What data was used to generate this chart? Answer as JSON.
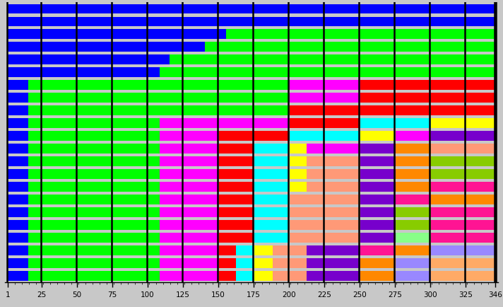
{
  "x_min": 1,
  "x_max": 346,
  "bg_color": "#c8c8c8",
  "major_lines": [
    1,
    25,
    50,
    75,
    100,
    125,
    150,
    175,
    200,
    225,
    250,
    275,
    300,
    325,
    346
  ],
  "tick_positions": [
    1,
    25,
    50,
    75,
    100,
    125,
    150,
    175,
    200,
    225,
    250,
    275,
    300,
    325,
    346
  ],
  "sequences": [
    [
      [
        1,
        346,
        "#0000ff"
      ]
    ],
    [
      [
        1,
        346,
        "#0000ff"
      ]
    ],
    [
      [
        1,
        155,
        "#0000ff"
      ],
      [
        156,
        346,
        "#00ff00"
      ]
    ],
    [
      [
        1,
        140,
        "#0000ff"
      ],
      [
        141,
        346,
        "#00ff00"
      ]
    ],
    [
      [
        1,
        115,
        "#0000ff"
      ],
      [
        116,
        346,
        "#00ff00"
      ]
    ],
    [
      [
        1,
        108,
        "#0000ff"
      ],
      [
        109,
        346,
        "#00ff00"
      ]
    ],
    [
      [
        1,
        15,
        "#0000ff"
      ],
      [
        16,
        200,
        "#00ff00"
      ],
      [
        201,
        250,
        "#ff00ff"
      ],
      [
        251,
        346,
        "#ff0000"
      ]
    ],
    [
      [
        1,
        15,
        "#0000ff"
      ],
      [
        16,
        200,
        "#00ff00"
      ],
      [
        201,
        250,
        "#ff00ff"
      ],
      [
        251,
        346,
        "#ff0000"
      ]
    ],
    [
      [
        1,
        15,
        "#0000ff"
      ],
      [
        16,
        200,
        "#00ff00"
      ],
      [
        201,
        250,
        "#ff0000"
      ],
      [
        251,
        346,
        "#ff0000"
      ]
    ],
    [
      [
        1,
        15,
        "#0000ff"
      ],
      [
        16,
        108,
        "#00ff00"
      ],
      [
        109,
        200,
        "#ff00ff"
      ],
      [
        201,
        250,
        "#ff0000"
      ],
      [
        251,
        300,
        "#00ffff"
      ],
      [
        301,
        346,
        "#ffff00"
      ]
    ],
    [
      [
        1,
        15,
        "#0000ff"
      ],
      [
        16,
        108,
        "#00ff00"
      ],
      [
        109,
        150,
        "#ff00ff"
      ],
      [
        151,
        200,
        "#ff0000"
      ],
      [
        201,
        250,
        "#00ffff"
      ],
      [
        251,
        275,
        "#ffff00"
      ],
      [
        276,
        300,
        "#ff00ff"
      ],
      [
        301,
        346,
        "#7700cc"
      ]
    ],
    [
      [
        1,
        15,
        "#0000ff"
      ],
      [
        16,
        108,
        "#00ff00"
      ],
      [
        109,
        150,
        "#ff00ff"
      ],
      [
        151,
        175,
        "#ff0000"
      ],
      [
        176,
        200,
        "#00ffff"
      ],
      [
        201,
        212,
        "#ffff00"
      ],
      [
        213,
        250,
        "#ff00ff"
      ],
      [
        251,
        275,
        "#7700cc"
      ],
      [
        276,
        300,
        "#ff8800"
      ],
      [
        301,
        346,
        "#ff9977"
      ]
    ],
    [
      [
        1,
        15,
        "#0000ff"
      ],
      [
        16,
        108,
        "#00ff00"
      ],
      [
        109,
        150,
        "#ff00ff"
      ],
      [
        151,
        175,
        "#ff0000"
      ],
      [
        176,
        200,
        "#00ffff"
      ],
      [
        201,
        212,
        "#ffff00"
      ],
      [
        213,
        250,
        "#ff9977"
      ],
      [
        251,
        275,
        "#7700cc"
      ],
      [
        276,
        300,
        "#ff8800"
      ],
      [
        301,
        346,
        "#88cc00"
      ]
    ],
    [
      [
        1,
        15,
        "#0000ff"
      ],
      [
        16,
        108,
        "#00ff00"
      ],
      [
        109,
        150,
        "#ff00ff"
      ],
      [
        151,
        175,
        "#ff0000"
      ],
      [
        176,
        200,
        "#00ffff"
      ],
      [
        201,
        212,
        "#ffff00"
      ],
      [
        213,
        250,
        "#ff9977"
      ],
      [
        251,
        275,
        "#7700cc"
      ],
      [
        276,
        300,
        "#ff8800"
      ],
      [
        301,
        346,
        "#88cc00"
      ]
    ],
    [
      [
        1,
        15,
        "#0000ff"
      ],
      [
        16,
        108,
        "#00ff00"
      ],
      [
        109,
        150,
        "#ff00ff"
      ],
      [
        151,
        175,
        "#ff0000"
      ],
      [
        176,
        200,
        "#00ffff"
      ],
      [
        201,
        212,
        "#ffff00"
      ],
      [
        213,
        250,
        "#ff9977"
      ],
      [
        251,
        275,
        "#7700cc"
      ],
      [
        276,
        300,
        "#ff8800"
      ],
      [
        301,
        346,
        "#ff1493"
      ]
    ],
    [
      [
        1,
        15,
        "#0000ff"
      ],
      [
        16,
        108,
        "#00ff00"
      ],
      [
        109,
        150,
        "#ff00ff"
      ],
      [
        151,
        175,
        "#ff0000"
      ],
      [
        176,
        200,
        "#00ffff"
      ],
      [
        201,
        250,
        "#ff9977"
      ],
      [
        251,
        275,
        "#7700cc"
      ],
      [
        276,
        300,
        "#ff1493"
      ],
      [
        301,
        346,
        "#ff8800"
      ]
    ],
    [
      [
        1,
        15,
        "#0000ff"
      ],
      [
        16,
        108,
        "#00ff00"
      ],
      [
        109,
        150,
        "#ff00ff"
      ],
      [
        151,
        175,
        "#ff0000"
      ],
      [
        176,
        200,
        "#00ffff"
      ],
      [
        201,
        250,
        "#ff9977"
      ],
      [
        251,
        275,
        "#7700cc"
      ],
      [
        276,
        300,
        "#88cc00"
      ],
      [
        301,
        346,
        "#ff1493"
      ]
    ],
    [
      [
        1,
        15,
        "#0000ff"
      ],
      [
        16,
        108,
        "#00ff00"
      ],
      [
        109,
        150,
        "#ff00ff"
      ],
      [
        151,
        175,
        "#ff0000"
      ],
      [
        176,
        200,
        "#00ffff"
      ],
      [
        201,
        250,
        "#ff9977"
      ],
      [
        251,
        275,
        "#7700cc"
      ],
      [
        276,
        300,
        "#88cc00"
      ],
      [
        301,
        346,
        "#ff1493"
      ]
    ],
    [
      [
        1,
        15,
        "#0000ff"
      ],
      [
        16,
        108,
        "#00ff00"
      ],
      [
        109,
        150,
        "#ff00ff"
      ],
      [
        151,
        175,
        "#ff0000"
      ],
      [
        176,
        200,
        "#00ffff"
      ],
      [
        201,
        250,
        "#ff9977"
      ],
      [
        251,
        275,
        "#7700cc"
      ],
      [
        276,
        300,
        "#88ff88"
      ],
      [
        301,
        346,
        "#ff1493"
      ]
    ],
    [
      [
        1,
        15,
        "#0000ff"
      ],
      [
        16,
        108,
        "#00ff00"
      ],
      [
        109,
        150,
        "#ff00ff"
      ],
      [
        151,
        162,
        "#ff0000"
      ],
      [
        163,
        175,
        "#00ffff"
      ],
      [
        176,
        188,
        "#ffff00"
      ],
      [
        189,
        212,
        "#ff9977"
      ],
      [
        213,
        250,
        "#7700cc"
      ],
      [
        251,
        275,
        "#ff1493"
      ],
      [
        276,
        300,
        "#ff8800"
      ],
      [
        301,
        346,
        "#9988ff"
      ]
    ],
    [
      [
        1,
        15,
        "#0000ff"
      ],
      [
        16,
        108,
        "#00ff00"
      ],
      [
        109,
        150,
        "#ff00ff"
      ],
      [
        151,
        162,
        "#ff0000"
      ],
      [
        163,
        175,
        "#00ffff"
      ],
      [
        176,
        188,
        "#ffff00"
      ],
      [
        189,
        212,
        "#ff9977"
      ],
      [
        213,
        250,
        "#7700cc"
      ],
      [
        251,
        275,
        "#ff8800"
      ],
      [
        276,
        300,
        "#9988ff"
      ],
      [
        301,
        346,
        "#ffaa66"
      ]
    ],
    [
      [
        1,
        15,
        "#0000ff"
      ],
      [
        16,
        108,
        "#00ff00"
      ],
      [
        109,
        150,
        "#ff00ff"
      ],
      [
        151,
        162,
        "#ff0000"
      ],
      [
        163,
        175,
        "#00ffff"
      ],
      [
        176,
        188,
        "#ffff00"
      ],
      [
        189,
        212,
        "#ff9977"
      ],
      [
        213,
        250,
        "#7700cc"
      ],
      [
        251,
        275,
        "#ff8800"
      ],
      [
        276,
        300,
        "#9988ff"
      ],
      [
        301,
        346,
        "#ffaa66"
      ]
    ]
  ]
}
